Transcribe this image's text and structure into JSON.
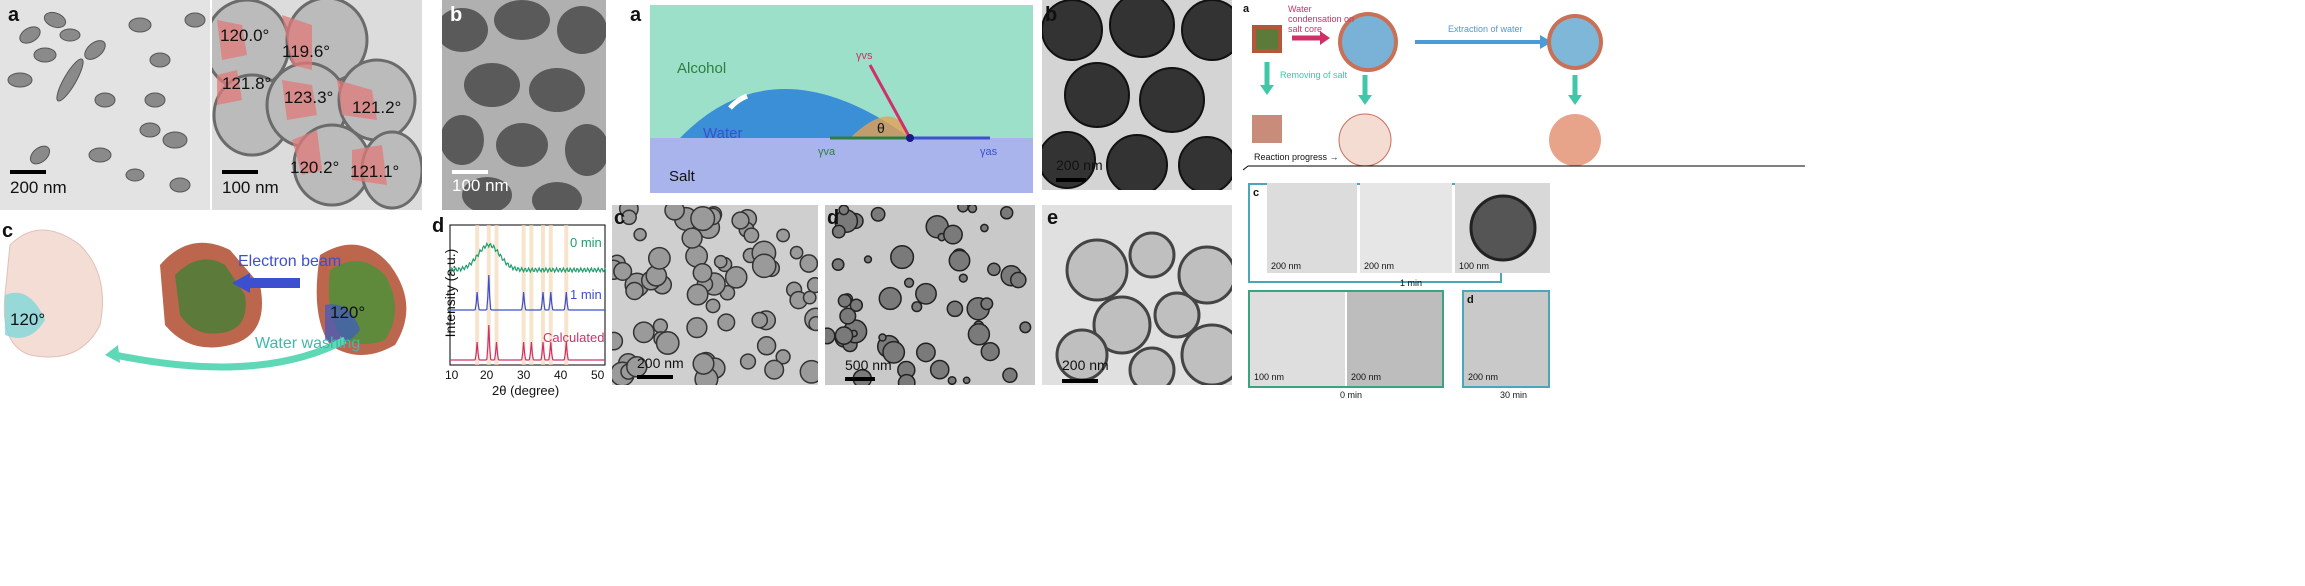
{
  "fig1": {
    "a_letter": "a",
    "a_scale_left": "200 nm",
    "a_scale_right": "100 nm",
    "angles": [
      "120.0°",
      "119.6°",
      "121.8°",
      "123.3°",
      "121.2°",
      "120.2°",
      "121.1°"
    ],
    "b_letter": "b",
    "b_scale": "100 nm",
    "c_letter": "c",
    "c_angle_left": "120°",
    "c_angle_right": "120°",
    "c_electron_beam": "Electron beam",
    "c_water_washing": "Water washing",
    "d_letter": "d",
    "d_ylabel": "Intensity (a.u.)",
    "d_xlabel": "2θ (degree)",
    "d_series": [
      "0 min",
      "1 min",
      "Calculated"
    ],
    "d_ticks": [
      "10",
      "20",
      "30",
      "40",
      "50"
    ]
  },
  "fig2": {
    "a_letter": "a",
    "alcohol": "Alcohol",
    "water": "Water",
    "salt": "Salt",
    "theta": "θ",
    "gamma_vs": "γvs",
    "gamma_va": "γva",
    "gamma_as": "γas",
    "b_letter": "b",
    "b_scale": "200 nm",
    "c_letter": "c",
    "c_scale": "200 nm",
    "d_letter": "d",
    "d_scale": "500 nm",
    "e_letter": "e",
    "e_scale": "200 nm"
  },
  "fig3": {
    "a_letter": "a",
    "water_condensation": "Water condensation on salt core",
    "extraction": "Extraction of water",
    "removing_salt": "Removing of salt",
    "reaction_progress": "Reaction progress →",
    "c_letter": "c",
    "c_scales": [
      "200 nm",
      "200 nm",
      "100 nm"
    ],
    "c_time": "1 min",
    "b_letter": "b",
    "b_scales": [
      "100 nm",
      "200 nm"
    ],
    "b_time": "0 min",
    "d_letter": "d",
    "d_scale": "200 nm",
    "d_time": "30 min"
  },
  "colors": {
    "red_sector": "#e07a7a",
    "teal": "#3fb9a8",
    "blue_text": "#3b53c7",
    "green_series": "#1f9e6e",
    "blue_series": "#3c4fcf",
    "red_series": "#d0306a",
    "frame_teal": "#4aa6b8",
    "frame_green": "#3da37f"
  },
  "chart_data": {
    "type": "line",
    "xlabel": "2θ (degree)",
    "ylabel": "Intensity (a.u.)",
    "xlim": [
      10,
      50
    ],
    "series": [
      {
        "name": "0 min",
        "note_peaks": [
          20
        ]
      },
      {
        "name": "1 min",
        "note_peaks": [
          17,
          20,
          29,
          34,
          36,
          40
        ]
      },
      {
        "name": "Calculated",
        "note_peaks": [
          17,
          20,
          22,
          29,
          31,
          34,
          36,
          40
        ]
      }
    ]
  }
}
